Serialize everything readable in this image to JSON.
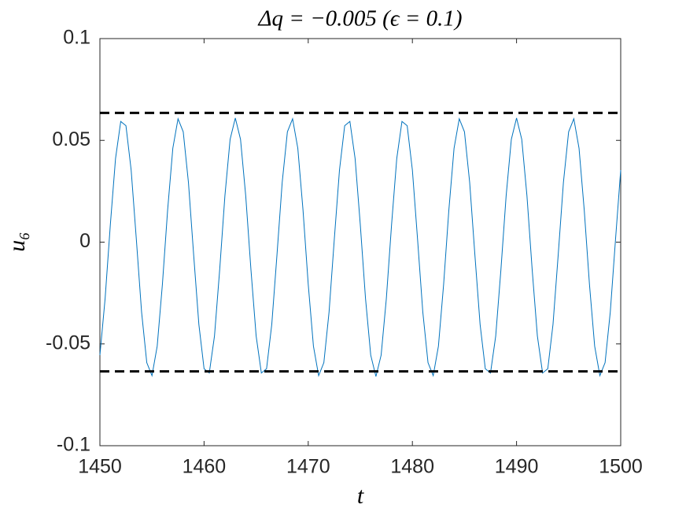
{
  "chart_data": {
    "type": "line",
    "title": "Δq = −0.005 (ϵ = 0.1)",
    "x_label": "t",
    "y_label": "u₆",
    "xlim": [
      1450,
      1500
    ],
    "xticks": [
      1450,
      1460,
      1470,
      1480,
      1490,
      1500
    ],
    "ylim": [
      -0.1,
      0.1
    ],
    "yticks": [
      -0.1,
      -0.05,
      0,
      0.05,
      0.1
    ],
    "x": [
      1450,
      1450.5,
      1451,
      1451.5,
      1452,
      1452.5,
      1453,
      1453.5,
      1454,
      1454.5,
      1455,
      1455.5,
      1456,
      1456.5,
      1457,
      1457.5,
      1458,
      1458.5,
      1459,
      1459.5,
      1460,
      1460.5,
      1461,
      1461.5,
      1462,
      1462.5,
      1463,
      1463.5,
      1464,
      1464.5,
      1465,
      1465.5,
      1466,
      1466.5,
      1467,
      1467.5,
      1468,
      1468.5,
      1469,
      1469.5,
      1470,
      1470.5,
      1471,
      1471.5,
      1472,
      1472.5,
      1473,
      1473.5,
      1474,
      1474.5,
      1475,
      1475.5,
      1476,
      1476.5,
      1477,
      1477.5,
      1478,
      1478.5,
      1479,
      1479.5,
      1480,
      1480.5,
      1481,
      1481.5,
      1482,
      1482.5,
      1483,
      1483.5,
      1484,
      1484.5,
      1485,
      1485.5,
      1486,
      1486.5,
      1487,
      1487.5,
      1488,
      1488.5,
      1489,
      1489.5,
      1490,
      1490.5,
      1491,
      1491.5,
      1492,
      1492.5,
      1493,
      1493.5,
      1494,
      1494.5,
      1495,
      1495.5,
      1496,
      1496.5,
      1497,
      1497.5,
      1498,
      1498.5,
      1499,
      1499.5,
      1500
    ],
    "series": [
      {
        "color": "#0072bd",
        "values": [
          -0.0555,
          -0.0277,
          0.0085,
          0.0411,
          0.0593,
          0.0572,
          0.0354,
          0.0012,
          -0.0343,
          -0.0592,
          -0.0656,
          -0.0511,
          -0.0207,
          0.0157,
          0.0461,
          0.0606,
          0.0542,
          0.0293,
          -0.0062,
          -0.0404,
          -0.0622,
          -0.0643,
          -0.0461,
          -0.0135,
          0.0227,
          0.0505,
          0.061,
          0.0505,
          0.0227,
          -0.0135,
          -0.0461,
          -0.0643,
          -0.0622,
          -0.0404,
          -0.0062,
          0.0293,
          0.0542,
          0.0606,
          0.0461,
          0.0157,
          -0.0207,
          -0.0511,
          -0.0656,
          -0.0592,
          -0.0343,
          0.0012,
          0.0354,
          0.0572,
          0.0593,
          0.0411,
          0.0085,
          -0.0277,
          -0.0555,
          -0.066,
          -0.0555,
          -0.0277,
          0.0085,
          0.0411,
          0.0593,
          0.0572,
          0.0354,
          0.0012,
          -0.0343,
          -0.0592,
          -0.0656,
          -0.0511,
          -0.0207,
          0.0157,
          0.0461,
          0.0606,
          0.0542,
          0.0293,
          -0.0062,
          -0.0404,
          -0.0622,
          -0.0643,
          -0.0461,
          -0.0135,
          0.0227,
          0.0505,
          0.061,
          0.0505,
          0.0227,
          -0.0135,
          -0.0461,
          -0.0643,
          -0.0622,
          -0.0404,
          -0.0062,
          0.0293,
          0.0542,
          0.0606,
          0.0461,
          0.0157,
          -0.0207,
          -0.0511,
          -0.0656,
          -0.0592,
          -0.0343,
          0.0012,
          0.0354
        ]
      },
      {
        "color": "#000000",
        "dashed": true,
        "x": [
          1450,
          1500
        ],
        "values": [
          0.0635,
          0.0635
        ]
      },
      {
        "color": "#000000",
        "dashed": true,
        "x": [
          1450,
          1500
        ],
        "values": [
          -0.0635,
          -0.0635
        ]
      }
    ]
  }
}
